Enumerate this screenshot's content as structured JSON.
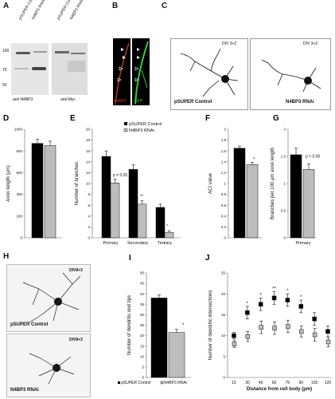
{
  "panels": {
    "A": {
      "letter": "A",
      "lanes_left": [
        "pSUPER Control",
        "N4BP3 RNAi"
      ],
      "lanes_right": [
        "pSUPER Control",
        "N4BP3 RNAi"
      ],
      "markers": [
        "100",
        "75",
        "50"
      ],
      "blot_left_label": "anti N4BP3",
      "blot_right_label": "anti-Myc"
    },
    "B": {
      "letter": "B",
      "label_left": "N4BP3",
      "label_right": "GFP"
    },
    "C": {
      "letter": "C",
      "left_div": "DIV 3+2",
      "right_div": "DIV 3+2",
      "left_label": "pSUPER Control",
      "right_label": "N4BP3 RNAi"
    },
    "D": {
      "letter": "D"
    },
    "E": {
      "letter": "E"
    },
    "F": {
      "letter": "F"
    },
    "G": {
      "letter": "G"
    },
    "H": {
      "letter": "H",
      "top_div": "DIV8+3",
      "bottom_div": "DIV8+3",
      "top_label": "pSUPER Control",
      "bottom_label": "N4BP3 RNAi"
    },
    "I": {
      "letter": "I"
    },
    "J": {
      "letter": "J"
    }
  },
  "colors": {
    "control": "#000000",
    "rnai": "#bdbdbd",
    "red_marker": "#c0392b",
    "green": "#2ecc40"
  },
  "chart_data": [
    {
      "id": "D",
      "type": "bar",
      "categories": [
        "pSUPER Control",
        "N4BP3 RNAi"
      ],
      "values": [
        870,
        850
      ],
      "errors": [
        40,
        40
      ],
      "ylabel": "Axon length (µm)",
      "ylim": [
        0,
        1000
      ],
      "yticks": [
        "0",
        "200",
        "400",
        "600",
        "800",
        "1000"
      ]
    },
    {
      "id": "E",
      "type": "bar",
      "categories": [
        "Primary",
        "Secondary",
        "Tertiary"
      ],
      "series": [
        {
          "name": "pSUPER Control",
          "values": [
            15,
            12.6,
            5.6
          ],
          "errors": [
            1.0,
            0.9,
            0.6
          ]
        },
        {
          "name": "N4BP3 RNAi",
          "values": [
            10.1,
            6.2,
            1.0
          ],
          "errors": [
            0.7,
            0.6,
            0.3
          ]
        }
      ],
      "ylabel": "Number of branches",
      "ylim": [
        0,
        20
      ],
      "yticks": [
        "0",
        "2",
        "4",
        "6",
        "8",
        "10",
        "12",
        "14",
        "16",
        "18",
        "20"
      ],
      "annotations": [
        "p = 0.05",
        "**",
        "*"
      ]
    },
    {
      "id": "F",
      "type": "bar",
      "categories": [
        "pSUPER Control",
        "N4BP3 RNAi"
      ],
      "values": [
        1.65,
        1.35
      ],
      "errors": [
        0.04,
        0.04
      ],
      "ylabel": "ACI value",
      "ylim": [
        0,
        2
      ],
      "yticks": [
        "0",
        "0.2",
        "0.4",
        "0.6",
        "0.8",
        "1",
        "1.2",
        "1.4",
        "1.6",
        "1.8",
        "2"
      ],
      "annotations": [
        "*"
      ]
    },
    {
      "id": "G",
      "type": "bar",
      "categories": [
        "Primary"
      ],
      "series": [
        {
          "name": "pSUPER Control",
          "values": [
            1.53
          ],
          "errors": [
            0.12
          ]
        },
        {
          "name": "N4BP3 RNAi",
          "values": [
            1.26
          ],
          "errors": [
            0.1
          ]
        }
      ],
      "ylabel": "Branches per 100 µm axon length",
      "ylim": [
        0,
        2
      ],
      "yticks": [
        "0",
        "0.5",
        "1",
        "1.5",
        "2"
      ],
      "annotations": [
        "p = 0.06"
      ]
    },
    {
      "id": "I",
      "type": "bar",
      "categories": [
        "pSUPER Control",
        "N4BP3 RNAi"
      ],
      "values": [
        38,
        21.5
      ],
      "errors": [
        1.5,
        1.5
      ],
      "ylabel": "Number of dendritic end tips",
      "ylim": [
        0,
        50
      ],
      "yticks": [
        "0",
        "5",
        "10",
        "15",
        "20",
        "25",
        "30",
        "35",
        "40",
        "45",
        "50"
      ],
      "annotations": [
        "*"
      ],
      "legend": [
        "pSUPER Control",
        "N4BP3 RNAi"
      ]
    },
    {
      "id": "J",
      "type": "scatter",
      "x": [
        15,
        30,
        45,
        60,
        75,
        90,
        105,
        120
      ],
      "series": [
        {
          "name": "pSUPER Control",
          "values": [
            10,
            15.5,
            17.5,
            19,
            18.5,
            17,
            14,
            11
          ],
          "errors": [
            0.8,
            1.5,
            1.5,
            1.5,
            1.5,
            1.5,
            1.5,
            1.3
          ]
        },
        {
          "name": "N4BP3 RNAi",
          "values": [
            8,
            9.8,
            12,
            11.8,
            12.2,
            11,
            10.2,
            8.5
          ],
          "errors": [
            0.8,
            1.2,
            1.5,
            1.5,
            1.5,
            1.3,
            1.5,
            1.2
          ]
        }
      ],
      "xlabel": "Distance from cell body (µm)",
      "ylabel": "Number of dendritic intersections",
      "ylim": [
        0,
        25
      ],
      "yticks": [
        "0",
        "5",
        "10",
        "15",
        "20",
        "25"
      ],
      "annotations": [
        {
          "x": 30,
          "text": "*"
        },
        {
          "x": 45,
          "text": "*"
        },
        {
          "x": 60,
          "text": "**"
        },
        {
          "x": 75,
          "text": "*"
        },
        {
          "x": 90,
          "text": "*"
        }
      ]
    }
  ]
}
